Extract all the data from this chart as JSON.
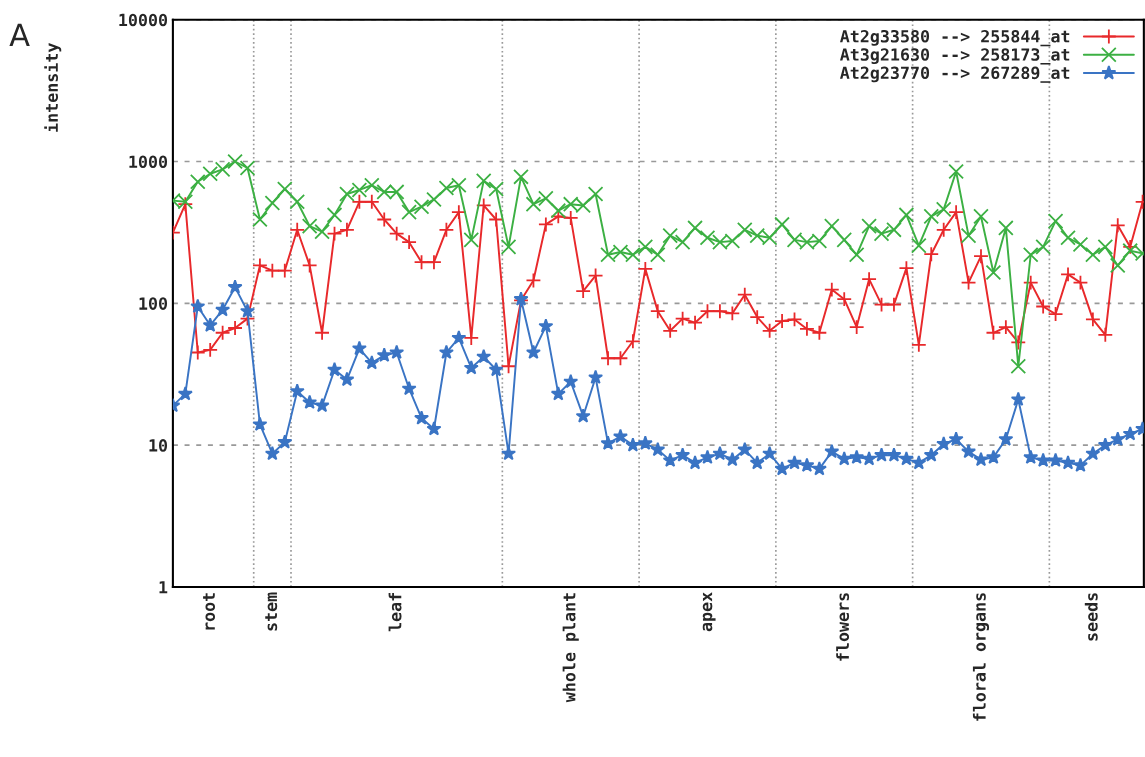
{
  "chart_data": {
    "type": "line",
    "ylabel": "intensity",
    "annotations": [
      "A"
    ],
    "log": "y",
    "ylim": [
      1,
      10000
    ],
    "yticks": [
      1,
      10,
      100,
      1000,
      10000
    ],
    "categories": [
      null,
      null,
      null,
      "root",
      null,
      null,
      null,
      null,
      "stem",
      null,
      null,
      null,
      null,
      null,
      null,
      null,
      null,
      null,
      "leaf",
      null,
      null,
      null,
      null,
      null,
      null,
      null,
      null,
      null,
      null,
      null,
      null,
      null,
      "whole plant",
      null,
      null,
      null,
      null,
      null,
      null,
      null,
      null,
      null,
      null,
      "apex",
      null,
      null,
      null,
      null,
      null,
      null,
      null,
      null,
      null,
      null,
      "flowers",
      null,
      null,
      null,
      null,
      null,
      null,
      null,
      null,
      null,
      null,
      "floral organs",
      null,
      null,
      null,
      null,
      null,
      null,
      null,
      null,
      "seeds",
      null,
      null,
      null,
      null
    ],
    "grid": "y",
    "legend": "top right",
    "line_style": "solid",
    "series": [
      {
        "name": "At2g33580 --> 255844_at",
        "color": "#e8292b",
        "marker": "plus",
        "values": [
          315,
          500,
          45,
          47,
          62,
          67,
          78,
          185,
          170,
          170,
          330,
          185,
          62,
          310,
          330,
          520,
          520,
          390,
          310,
          270,
          195,
          195,
          330,
          440,
          57,
          490,
          390,
          36,
          105,
          145,
          360,
          410,
          400,
          122,
          157,
          41,
          41,
          54,
          175,
          88,
          64,
          78,
          73,
          88,
          88,
          85,
          115,
          80,
          64,
          75,
          77,
          66,
          62,
          125,
          107,
          68,
          148,
          98,
          98,
          177,
          51,
          222,
          330,
          440,
          140,
          215,
          62,
          68,
          53,
          140,
          95,
          84,
          160,
          140,
          77,
          60,
          355,
          250,
          520
        ]
      },
      {
        "name": "At3g21630 --> 258173_at",
        "color": "#3cb043",
        "marker": "cross",
        "values": [
          530,
          520,
          720,
          820,
          880,
          1000,
          900,
          390,
          510,
          640,
          520,
          350,
          320,
          420,
          590,
          630,
          680,
          610,
          610,
          440,
          480,
          540,
          650,
          680,
          280,
          730,
          640,
          250,
          780,
          500,
          550,
          450,
          500,
          490,
          590,
          220,
          230,
          220,
          250,
          220,
          300,
          270,
          340,
          290,
          270,
          275,
          330,
          300,
          290,
          360,
          280,
          270,
          275,
          350,
          280,
          220,
          350,
          310,
          330,
          420,
          255,
          410,
          460,
          850,
          300,
          410,
          165,
          340,
          36,
          220,
          250,
          380,
          290,
          260,
          220,
          250,
          185,
          235,
          225
        ]
      },
      {
        "name": "At2g23770 --> 267289_at",
        "color": "#3a74c4",
        "marker": "star",
        "values": [
          19,
          23,
          95,
          70,
          90,
          130,
          88,
          14,
          8.7,
          10.5,
          24,
          20,
          19,
          34,
          29,
          48,
          38,
          43,
          45,
          25,
          15.5,
          13,
          45,
          57,
          35,
          42,
          34,
          8.7,
          107,
          45,
          69,
          23,
          28,
          16,
          30,
          10.3,
          11.5,
          10,
          10.3,
          9.3,
          7.8,
          8.5,
          7.5,
          8.2,
          8.7,
          7.9,
          9.3,
          7.5,
          8.7,
          6.8,
          7.5,
          7.2,
          6.8,
          9,
          8,
          8.2,
          8,
          8.5,
          8.5,
          8,
          7.5,
          8.5,
          10.2,
          11,
          9,
          7.9,
          8.2,
          11,
          21,
          8.2,
          7.8,
          7.8,
          7.5,
          7.2,
          8.7,
          10,
          11,
          12,
          13
        ]
      }
    ]
  }
}
